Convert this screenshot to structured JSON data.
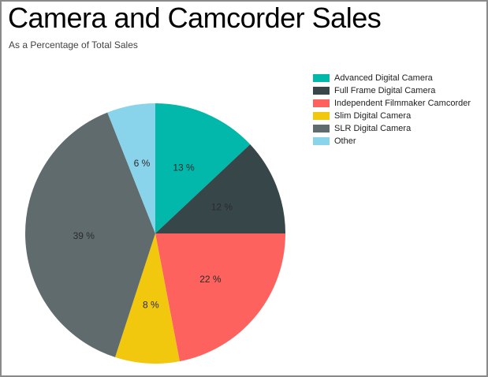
{
  "header": {
    "title": "Camera and Camcorder Sales",
    "subtitle": "As a Percentage of Total Sales"
  },
  "chart_data": {
    "type": "pie",
    "title": "Camera and Camcorder Sales",
    "subtitle": "As a Percentage of Total Sales",
    "categories": [
      "Advanced Digital Camera",
      "Full Frame Digital Camera",
      "Independent Filmmaker Camcorder",
      "Slim Digital Camera",
      "SLR Digital Camera",
      "Other"
    ],
    "values": [
      13,
      12,
      22,
      8,
      39,
      6
    ],
    "data_labels": [
      "13 %",
      "12 %",
      "22 %",
      "8 %",
      "39 %",
      "6 %"
    ],
    "colors": [
      "#01B8AA",
      "#374649",
      "#FD625E",
      "#F2C80F",
      "#5F6B6D",
      "#8AD4EB"
    ],
    "unit": "%",
    "total": 100,
    "legend_position": "top-right",
    "start_angle_deg": 0,
    "direction": "clockwise",
    "label_placement": "inside"
  }
}
